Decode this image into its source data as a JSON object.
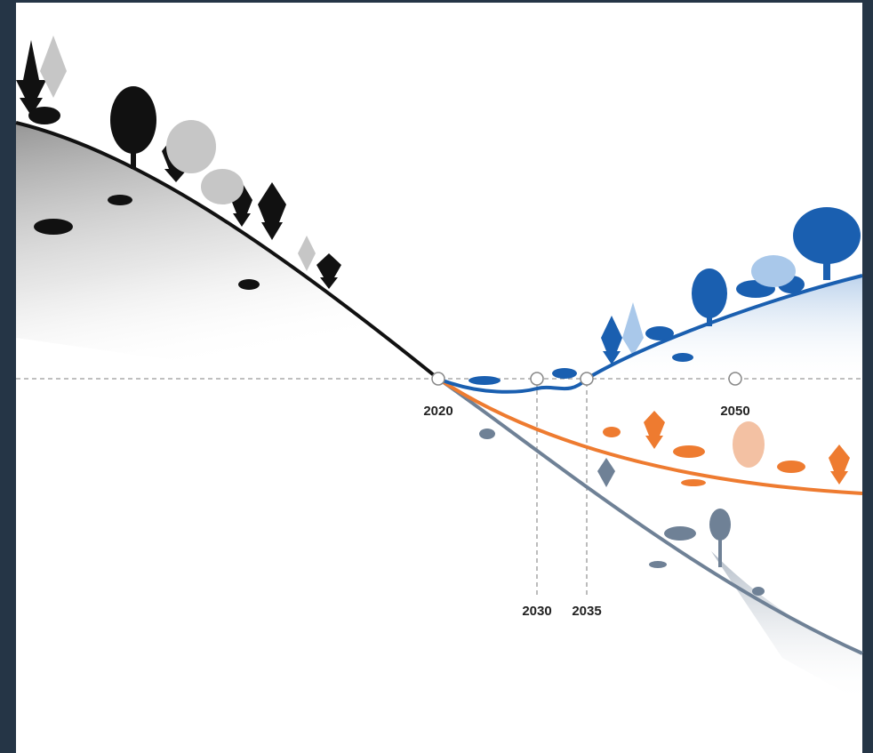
{
  "timeline": {
    "labels": [
      "2020",
      "2030",
      "2035",
      "2050"
    ]
  }
}
